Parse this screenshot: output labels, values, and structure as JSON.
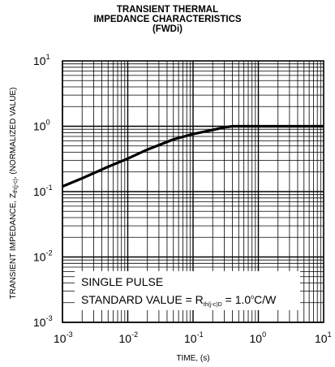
{
  "chart_data": {
    "type": "line",
    "title_lines": [
      "TRANSIENT THERMAL",
      "IMPEDANCE CHARACTERISTICS",
      "(FWDi)"
    ],
    "xlabel": "TIME, (s)",
    "ylabel": {
      "prefix": "TRANSIENT  IMPEDANCE, Z",
      "subscript": "th(j-c)",
      "suffix": ", (NORMALIZED VALUE)"
    },
    "x_scale": "log",
    "y_scale": "log",
    "xlim": [
      0.001,
      10
    ],
    "ylim": [
      0.001,
      10
    ],
    "x_ticks": [
      {
        "base": "10",
        "exp": "-3"
      },
      {
        "base": "10",
        "exp": "-2"
      },
      {
        "base": "10",
        "exp": "-1"
      },
      {
        "base": "10",
        "exp": "0"
      },
      {
        "base": "10",
        "exp": "1"
      }
    ],
    "y_ticks": [
      {
        "base": "10",
        "exp": "-3"
      },
      {
        "base": "10",
        "exp": "-2"
      },
      {
        "base": "10",
        "exp": "-1"
      },
      {
        "base": "10",
        "exp": "0"
      },
      {
        "base": "10",
        "exp": "1"
      }
    ],
    "grid": true,
    "series": [
      {
        "x": [
          0.001,
          0.002,
          0.005,
          0.01,
          0.02,
          0.05,
          0.1,
          0.2,
          0.3,
          0.4,
          0.6,
          1,
          3,
          10
        ],
        "y": [
          0.12,
          0.16,
          0.24,
          0.32,
          0.44,
          0.63,
          0.76,
          0.88,
          0.96,
          1.0,
          1.0,
          1.0,
          1.0,
          1.0
        ]
      }
    ],
    "annotation": {
      "line1": "SINGLE PULSE",
      "line2_prefix": "STANDARD VALUE = R",
      "line2_sub": "th(j-c)D",
      "line2_mid": " = 1.0",
      "line2_sup": "o",
      "line2_suffix": "C/W"
    }
  }
}
